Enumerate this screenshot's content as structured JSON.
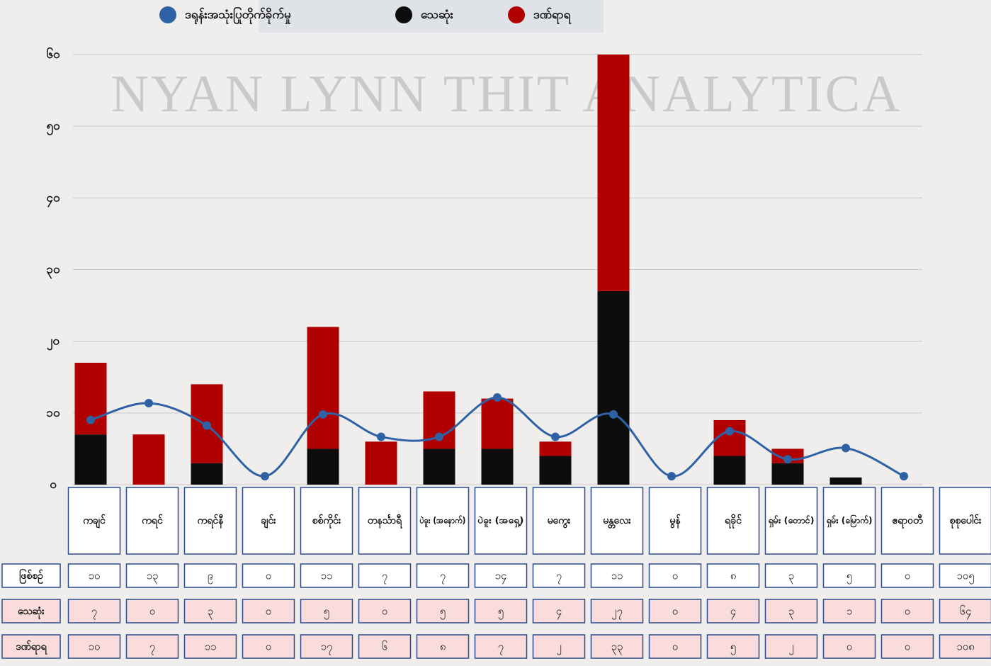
{
  "chart_data": {
    "type": "bar",
    "watermark": "NYAN LYNN THIT ANALYTICA",
    "stacked": true,
    "categories": [
      "ကချင်",
      "ကရင်",
      "ကရင်နီ",
      "ချင်း",
      "စစ်ကိုင်း",
      "တနင်္သာရီ",
      "ပဲခူး (အနောက်)",
      "ပဲခူး (အရှေ့)",
      "မကွေး",
      "မန္တလေး",
      "မွန်",
      "ရခိုင်",
      "ရှမ်း (တောင်)",
      "ရှမ်း (မြောက်)",
      "ဧရာဝတီ"
    ],
    "series": [
      {
        "name": "ဒရုန်းအသုံးပြုတိုက်ခိုက်မှု",
        "type": "line",
        "axis": "y2",
        "color": "#2e62a4",
        "values": [
          10,
          13,
          9,
          0,
          11,
          7,
          7,
          14,
          7,
          11,
          0,
          8,
          3,
          5,
          0
        ]
      },
      {
        "name": "သေဆုံး",
        "type": "bar",
        "color": "#0d0d0d",
        "values": [
          7,
          0,
          3,
          0,
          5,
          0,
          5,
          5,
          4,
          27,
          0,
          4,
          3,
          1,
          0
        ]
      },
      {
        "name": "ဒဏ်ရာရ",
        "type": "bar",
        "color": "#b00000",
        "values": [
          10,
          7,
          11,
          0,
          17,
          6,
          8,
          7,
          2,
          33,
          0,
          5,
          2,
          0,
          0
        ]
      }
    ],
    "ylim": [
      0,
      60
    ],
    "yticks": [
      {
        "value": 0,
        "label": "၀"
      },
      {
        "value": 10,
        "label": "၁၀"
      },
      {
        "value": 20,
        "label": "၂၀"
      },
      {
        "value": 30,
        "label": "၃၀"
      },
      {
        "value": 40,
        "label": "၄၀"
      },
      {
        "value": 50,
        "label": "၅၀"
      },
      {
        "value": 60,
        "label": "၆၀"
      }
    ],
    "y2lim": [
      -1.5,
      75
    ],
    "grid": true,
    "legend": "top"
  },
  "table": {
    "total_label": "စုစုပေါင်း",
    "row_labels": [
      "ဖြစ်စဉ်",
      "သေဆုံး",
      "ဒဏ်ရာရ"
    ],
    "rows": [
      [
        "၁၀",
        "၁၃",
        "၉",
        "၀",
        "၁၁",
        "၇",
        "၇",
        "၁၄",
        "၇",
        "၁၁",
        "၀",
        "၈",
        "၃",
        "၅",
        "၀",
        "၁၀၅"
      ],
      [
        "၇",
        "၀",
        "၃",
        "၀",
        "၅",
        "၀",
        "၅",
        "၅",
        "၄",
        "၂၇",
        "၀",
        "၄",
        "၃",
        "၁",
        "၀",
        "၆၄"
      ],
      [
        "၁၀",
        "၇",
        "၁၁",
        "၀",
        "၁၇",
        "၆",
        "၈",
        "၇",
        "၂",
        "၃၃",
        "၀",
        "၅",
        "၂",
        "၀",
        "၀",
        "၁၀၈"
      ]
    ]
  }
}
